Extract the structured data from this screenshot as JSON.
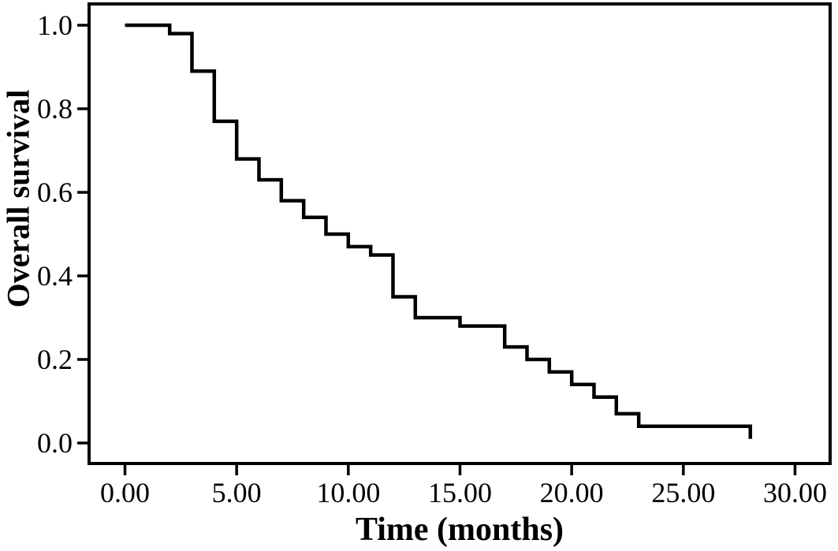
{
  "figure": {
    "background_color": "#ffffff",
    "line_color": "#000000",
    "x_axis_title": "Time (months)",
    "y_axis_title": "Overall survival"
  },
  "chart_data": {
    "type": "line",
    "subtype": "kaplan-meier-step",
    "title": "",
    "xlabel": "Time (months)",
    "ylabel": "Overall survival",
    "xlim": [
      0,
      30
    ],
    "ylim": [
      0.0,
      1.0
    ],
    "grid": false,
    "legend_position": "none",
    "x_ticks": [
      0,
      5,
      10,
      15,
      20,
      25,
      30
    ],
    "x_tick_labels": [
      "0.00",
      "5.00",
      "10.00",
      "15.00",
      "20.00",
      "25.00",
      "30.00"
    ],
    "y_ticks": [
      0.0,
      0.2,
      0.4,
      0.6,
      0.8,
      1.0
    ],
    "y_tick_labels": [
      "0.0",
      "0.2",
      "0.4",
      "0.6",
      "0.8",
      "1.0"
    ],
    "series": [
      {
        "name": "Overall survival",
        "color": "#000000",
        "steps_time_survival": [
          [
            0,
            1.0
          ],
          [
            2,
            0.98
          ],
          [
            3,
            0.89
          ],
          [
            4,
            0.77
          ],
          [
            5,
            0.68
          ],
          [
            6,
            0.63
          ],
          [
            7,
            0.58
          ],
          [
            8,
            0.54
          ],
          [
            9,
            0.5
          ],
          [
            10,
            0.47
          ],
          [
            11,
            0.45
          ],
          [
            12,
            0.35
          ],
          [
            13,
            0.3
          ],
          [
            15,
            0.28
          ],
          [
            17,
            0.23
          ],
          [
            18,
            0.2
          ],
          [
            19,
            0.17
          ],
          [
            20,
            0.14
          ],
          [
            21,
            0.11
          ],
          [
            22,
            0.07
          ],
          [
            23,
            0.04
          ],
          [
            28,
            0.01
          ]
        ]
      }
    ]
  }
}
